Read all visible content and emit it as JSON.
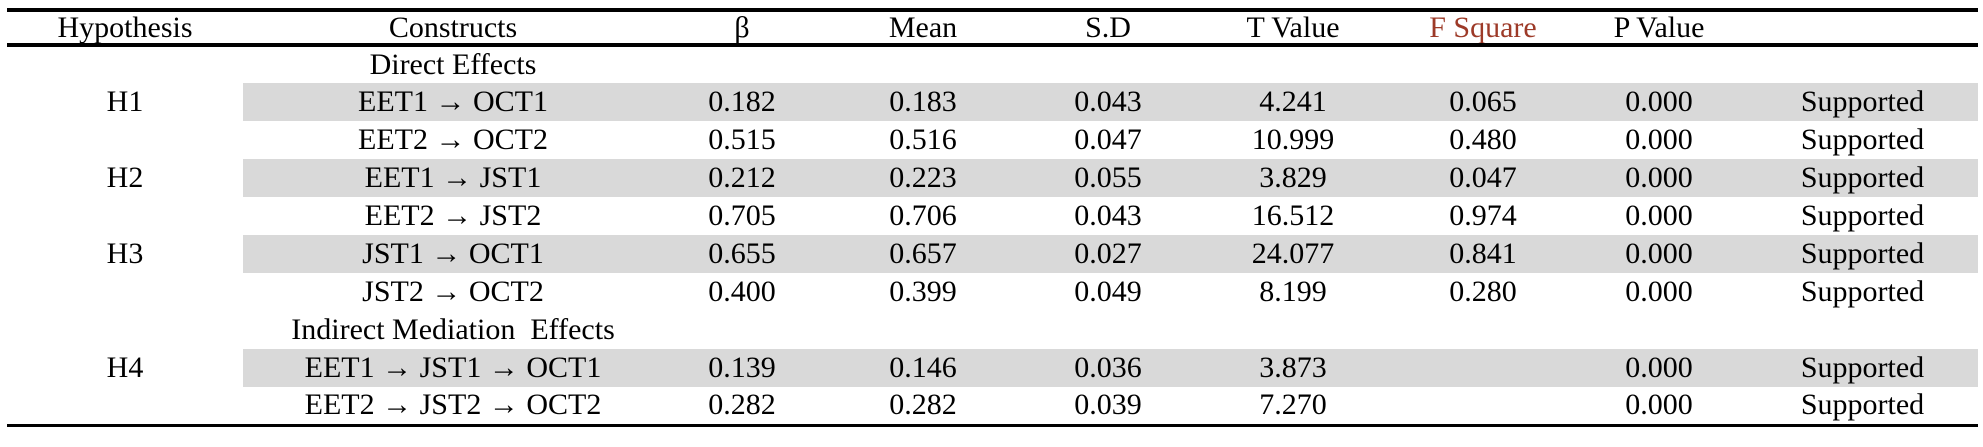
{
  "table": {
    "columns": [
      {
        "key": "hypothesis",
        "label": "Hypothesis"
      },
      {
        "key": "constructs",
        "label": "Constructs"
      },
      {
        "key": "beta",
        "label": "β"
      },
      {
        "key": "mean",
        "label": "Mean"
      },
      {
        "key": "sd",
        "label": "S.D"
      },
      {
        "key": "t_value",
        "label": "T Value"
      },
      {
        "key": "f_square",
        "label": "F Square"
      },
      {
        "key": "p_value",
        "label": "P Value"
      },
      {
        "key": "result",
        "label": ""
      }
    ],
    "rows": [
      {
        "type": "section",
        "shaded": false,
        "hypothesis": "",
        "constructs": "Direct Effects",
        "beta": "",
        "mean": "",
        "sd": "",
        "t_value": "",
        "f_square": "",
        "p_value": "",
        "result": ""
      },
      {
        "type": "data",
        "shaded": true,
        "hypothesis": "H1",
        "constructs": "EET1 → OCT1",
        "beta": "0.182",
        "mean": "0.183",
        "sd": "0.043",
        "t_value": "4.241",
        "f_square": "0.065",
        "p_value": "0.000",
        "result": "Supported"
      },
      {
        "type": "data",
        "shaded": false,
        "hypothesis": "",
        "constructs": "EET2 → OCT2",
        "beta": "0.515",
        "mean": "0.516",
        "sd": "0.047",
        "t_value": "10.999",
        "f_square": "0.480",
        "p_value": "0.000",
        "result": "Supported"
      },
      {
        "type": "data",
        "shaded": true,
        "hypothesis": "H2",
        "constructs": "EET1 → JST1",
        "beta": "0.212",
        "mean": "0.223",
        "sd": "0.055",
        "t_value": "3.829",
        "f_square": "0.047",
        "p_value": "0.000",
        "result": "Supported"
      },
      {
        "type": "data",
        "shaded": false,
        "hypothesis": "",
        "constructs": "EET2 → JST2",
        "beta": "0.705",
        "mean": "0.706",
        "sd": "0.043",
        "t_value": "16.512",
        "f_square": "0.974",
        "p_value": "0.000",
        "result": "Supported"
      },
      {
        "type": "data",
        "shaded": true,
        "hypothesis": "H3",
        "constructs": "JST1 → OCT1",
        "beta": "0.655",
        "mean": "0.657",
        "sd": "0.027",
        "t_value": "24.077",
        "f_square": "0.841",
        "p_value": "0.000",
        "result": "Supported"
      },
      {
        "type": "data",
        "shaded": false,
        "hypothesis": "",
        "constructs": "JST2 → OCT2",
        "beta": "0.400",
        "mean": "0.399",
        "sd": "0.049",
        "t_value": "8.199",
        "f_square": "0.280",
        "p_value": "0.000",
        "result": "Supported"
      },
      {
        "type": "section",
        "shaded": false,
        "hypothesis": "",
        "constructs": "Indirect Mediation  Effects",
        "beta": "",
        "mean": "",
        "sd": "",
        "t_value": "",
        "f_square": "",
        "p_value": "",
        "result": ""
      },
      {
        "type": "data",
        "shaded": true,
        "hypothesis": "H4",
        "constructs": "EET1 → JST1 → OCT1",
        "beta": "0.139",
        "mean": "0.146",
        "sd": "0.036",
        "t_value": "3.873",
        "f_square": "",
        "p_value": "0.000",
        "result": "Supported"
      },
      {
        "type": "data",
        "shaded": false,
        "hypothesis": "",
        "constructs": "EET2 → JST2 → OCT2",
        "beta": "0.282",
        "mean": "0.282",
        "sd": "0.039",
        "t_value": "7.270",
        "f_square": "",
        "p_value": "0.000",
        "result": "Supported"
      }
    ]
  },
  "colors": {
    "row_shade": "#d9d9d9",
    "f_square_header": "#9d3a28",
    "rule": "#000000",
    "text": "#000000",
    "background": "#ffffff"
  }
}
